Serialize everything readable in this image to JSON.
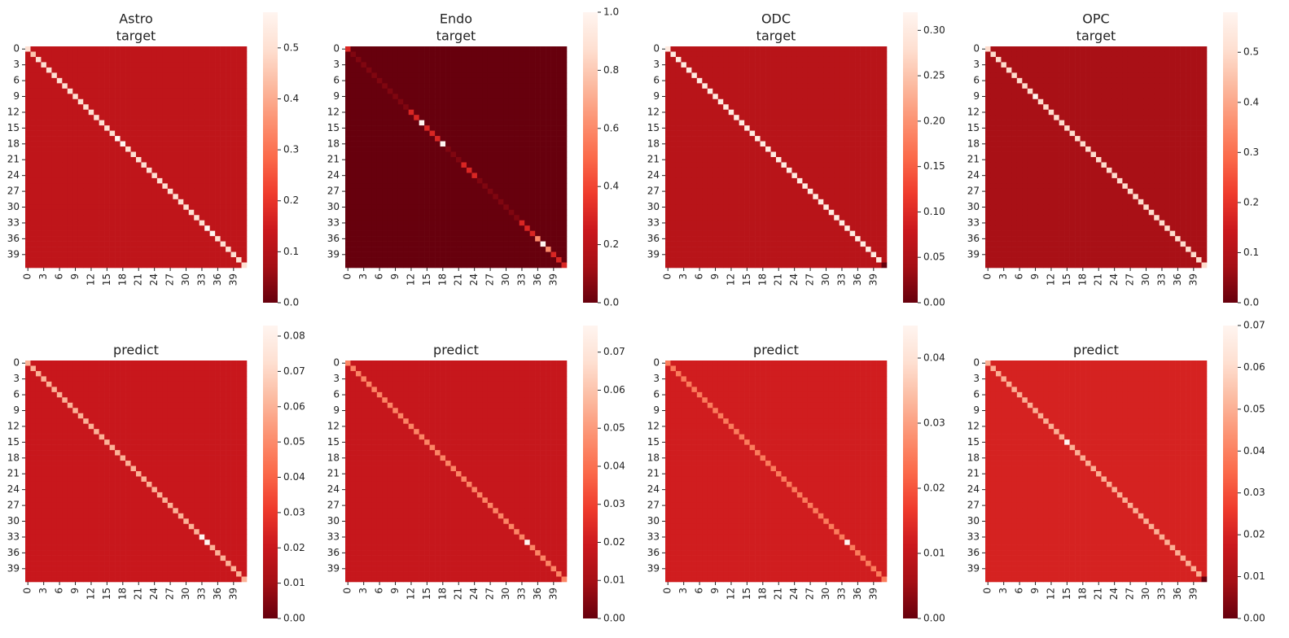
{
  "chart_data": [
    {
      "type": "heatmap",
      "title": [
        "Astro",
        "target"
      ],
      "colormap": "Reds_r",
      "categories": [
        0,
        null,
        null,
        3,
        null,
        null,
        6,
        null,
        null,
        9,
        null,
        null,
        12,
        null,
        null,
        15,
        null,
        null,
        18,
        null,
        null,
        21,
        null,
        null,
        24,
        null,
        null,
        27,
        null,
        null,
        30,
        null,
        null,
        33,
        null,
        null,
        36,
        null,
        null,
        39,
        null,
        null
      ],
      "diagonal": [
        0.5,
        0.45,
        0.5,
        0.5,
        0.5,
        0.5,
        0.5,
        0.5,
        0.5,
        0.5,
        0.5,
        0.5,
        0.5,
        0.5,
        0.5,
        0.5,
        0.5,
        0.57,
        0.57,
        0.5,
        0.5,
        0.5,
        0.5,
        0.5,
        0.5,
        0.5,
        0.5,
        0.5,
        0.5,
        0.5,
        0.5,
        0.5,
        0.5,
        0.5,
        0.57,
        0.57,
        0.5,
        0.5,
        0.5,
        0.5,
        0.5,
        0.5
      ],
      "off_diagonal": 0.12,
      "zlim": [
        0,
        0.57
      ],
      "zticks": [
        {
          "value": 0,
          "label": "0.0"
        },
        0.1,
        0.2,
        0.3,
        0.4,
        0.5
      ]
    },
    {
      "type": "heatmap",
      "title": [
        "Endo",
        "target"
      ],
      "colormap": "Reds_r",
      "categories": [
        0,
        null,
        null,
        3,
        null,
        null,
        6,
        null,
        null,
        9,
        null,
        null,
        12,
        null,
        null,
        15,
        null,
        null,
        18,
        null,
        null,
        21,
        null,
        null,
        24,
        null,
        null,
        27,
        null,
        null,
        30,
        null,
        null,
        33,
        null,
        null,
        36,
        null,
        null,
        39,
        null,
        null
      ],
      "diagonal": [
        0.3,
        0.05,
        0.05,
        0.05,
        0.05,
        0.05,
        0.05,
        0.05,
        0.05,
        0.05,
        0.05,
        0.05,
        0.3,
        0.3,
        1,
        0.3,
        0.3,
        0.3,
        1,
        0.05,
        0.05,
        0.05,
        0.3,
        0.3,
        0.3,
        0.05,
        0.05,
        0.05,
        0.05,
        0.05,
        0.05,
        0.05,
        0.05,
        0.3,
        0.3,
        0.3,
        0.6,
        1,
        0.6,
        0.3,
        0.3,
        0.3
      ],
      "off_diagonal": 0,
      "zlim": [
        0,
        1
      ],
      "zticks": [
        {
          "value": 0,
          "label": "0.0"
        },
        0.2,
        0.4,
        0.6,
        0.8,
        {
          "value": 1,
          "label": "1.0"
        }
      ]
    },
    {
      "type": "heatmap",
      "title": [
        "ODC",
        "target"
      ],
      "colormap": "Reds_r",
      "categories": [
        0,
        null,
        null,
        3,
        null,
        null,
        6,
        null,
        null,
        9,
        null,
        null,
        12,
        null,
        null,
        15,
        null,
        null,
        18,
        null,
        null,
        21,
        null,
        null,
        24,
        null,
        null,
        27,
        null,
        null,
        30,
        null,
        null,
        33,
        null,
        null,
        36,
        null,
        null,
        39,
        null,
        null
      ],
      "diagonal": [
        0.3,
        0.3,
        0.3,
        0.3,
        0.3,
        0.3,
        0.3,
        0.3,
        0.3,
        0.3,
        0.3,
        0.3,
        0.3,
        0.3,
        0.3,
        0.3,
        0.3,
        0.3,
        0.3,
        0.3,
        0.3,
        0.3,
        0.3,
        0.3,
        0.3,
        0.3,
        0.3,
        0.3,
        0.3,
        0.3,
        0.3,
        0.3,
        0.3,
        0.3,
        0.3,
        0.3,
        0.3,
        0.3,
        0.3,
        0.3,
        0.3,
        0
      ],
      "off_diagonal": 0.06,
      "zlim": [
        0,
        0.32
      ],
      "zticks": [
        {
          "value": 0,
          "label": "0.00"
        },
        0.05,
        {
          "value": 0.1,
          "label": "0.10"
        },
        0.15,
        {
          "value": 0.2,
          "label": "0.20"
        },
        0.25,
        {
          "value": 0.3,
          "label": "0.30"
        }
      ]
    },
    {
      "type": "heatmap",
      "title": [
        "OPC",
        "target"
      ],
      "colormap": "Reds_r",
      "categories": [
        0,
        null,
        null,
        3,
        null,
        null,
        6,
        null,
        null,
        9,
        null,
        null,
        12,
        null,
        null,
        15,
        null,
        null,
        18,
        null,
        null,
        21,
        null,
        null,
        24,
        null,
        null,
        27,
        null,
        null,
        30,
        null,
        null,
        33,
        null,
        null,
        36,
        null,
        null,
        39,
        null,
        null
      ],
      "diagonal": [
        0.5,
        0.5,
        0.5,
        0.5,
        0.5,
        0.5,
        0.5,
        0.5,
        0.5,
        0.58,
        0.5,
        0.5,
        0.5,
        0.5,
        0.5,
        0.5,
        0.5,
        0.5,
        0.5,
        0.5,
        0.5,
        0.5,
        0.5,
        0.5,
        0.5,
        0.5,
        0.5,
        0.5,
        0.5,
        0.5,
        0.5,
        0.5,
        0.5,
        0.5,
        0.5,
        0.5,
        0.5,
        0.5,
        0.5,
        0.5,
        0.5,
        0.5
      ],
      "off_diagonal": 0.08,
      "zlim": [
        0,
        0.58
      ],
      "zticks": [
        {
          "value": 0,
          "label": "0.0"
        },
        0.1,
        0.2,
        0.3,
        0.4,
        0.5
      ]
    },
    {
      "type": "heatmap",
      "title": [
        "predict"
      ],
      "colormap": "Reds_r",
      "categories": [
        0,
        null,
        null,
        3,
        null,
        null,
        6,
        null,
        null,
        9,
        null,
        null,
        12,
        null,
        null,
        15,
        null,
        null,
        18,
        null,
        null,
        21,
        null,
        null,
        24,
        null,
        null,
        27,
        null,
        null,
        30,
        null,
        null,
        33,
        null,
        null,
        36,
        null,
        null,
        39,
        null,
        null
      ],
      "diagonal": [
        0.06,
        0.06,
        0.06,
        0.06,
        0.06,
        0.06,
        0.06,
        0.06,
        0.06,
        0.06,
        0.06,
        0.06,
        0.06,
        0.06,
        0.06,
        0.06,
        0.06,
        0.06,
        0.06,
        0.06,
        0.06,
        0.06,
        0.06,
        0.06,
        0.06,
        0.06,
        0.06,
        0.06,
        0.06,
        0.06,
        0.06,
        0.06,
        0.06,
        0.083,
        0.083,
        0.06,
        0.06,
        0.06,
        0.06,
        0.06,
        0.06,
        0.06
      ],
      "off_diagonal": 0.02,
      "zlim": [
        0,
        0.083
      ],
      "zticks": [
        {
          "value": 0,
          "label": "0.00"
        },
        0.01,
        0.02,
        0.03,
        0.04,
        0.05,
        0.06,
        0.07,
        0.08
      ]
    },
    {
      "type": "heatmap",
      "title": [
        "predict"
      ],
      "colormap": "Reds_r",
      "categories": [
        0,
        null,
        null,
        3,
        null,
        null,
        6,
        null,
        null,
        9,
        null,
        null,
        12,
        null,
        null,
        15,
        null,
        null,
        18,
        null,
        null,
        21,
        null,
        null,
        24,
        null,
        null,
        27,
        null,
        null,
        30,
        null,
        null,
        33,
        null,
        null,
        36,
        null,
        null,
        39,
        null,
        null
      ],
      "diagonal": [
        0.045,
        0.045,
        0.045,
        0.045,
        0.045,
        0.045,
        0.045,
        0.045,
        0.045,
        0.045,
        0.045,
        0.045,
        0.045,
        0.045,
        0.045,
        0.045,
        0.045,
        0.045,
        0.045,
        0.045,
        0.045,
        0.045,
        0.045,
        0.045,
        0.045,
        0.045,
        0.045,
        0.045,
        0.045,
        0.045,
        0.045,
        0.045,
        0.045,
        0.045,
        0.077,
        0.045,
        0.045,
        0.045,
        0.045,
        0.045,
        0.045,
        0.045
      ],
      "off_diagonal": 0.018,
      "zlim": [
        0,
        0.077
      ],
      "zticks": [
        {
          "value": 0,
          "label": "0.00"
        },
        0.01,
        0.02,
        0.03,
        0.04,
        0.05,
        0.06,
        0.07
      ]
    },
    {
      "type": "heatmap",
      "title": [
        "predict"
      ],
      "colormap": "Reds_r",
      "categories": [
        0,
        null,
        null,
        3,
        null,
        null,
        6,
        null,
        null,
        9,
        null,
        null,
        12,
        null,
        null,
        15,
        null,
        null,
        18,
        null,
        null,
        21,
        null,
        null,
        24,
        null,
        null,
        27,
        null,
        null,
        30,
        null,
        null,
        33,
        null,
        null,
        36,
        null,
        null,
        39,
        null,
        null
      ],
      "diagonal": [
        0.025,
        0.025,
        0.025,
        0.025,
        0.025,
        0.025,
        0.025,
        0.025,
        0.025,
        0.025,
        0.025,
        0.025,
        0.025,
        0.025,
        0.025,
        0.025,
        0.025,
        0.025,
        0.025,
        0.025,
        0.025,
        0.025,
        0.025,
        0.025,
        0.025,
        0.025,
        0.025,
        0.025,
        0.025,
        0.025,
        0.025,
        0.025,
        0.025,
        0.025,
        0.045,
        0.025,
        0.025,
        0.025,
        0.025,
        0.025,
        0.025,
        0.025
      ],
      "off_diagonal": 0.012,
      "zlim": [
        0,
        0.045
      ],
      "zticks": [
        {
          "value": 0,
          "label": "0.00"
        },
        0.01,
        0.02,
        0.03,
        0.04
      ]
    },
    {
      "type": "heatmap",
      "title": [
        "predict"
      ],
      "colormap": "Reds_r",
      "categories": [
        0,
        null,
        null,
        3,
        null,
        null,
        6,
        null,
        null,
        9,
        null,
        null,
        12,
        null,
        null,
        15,
        null,
        null,
        18,
        null,
        null,
        21,
        null,
        null,
        24,
        null,
        null,
        27,
        null,
        null,
        30,
        null,
        null,
        33,
        null,
        null,
        36,
        null,
        null,
        39,
        null,
        null
      ],
      "diagonal": [
        0.05,
        0.05,
        0.05,
        0.05,
        0.05,
        0.05,
        0.05,
        0.05,
        0.05,
        0.05,
        0.05,
        0.05,
        0.05,
        0.05,
        0.05,
        0.07,
        0.05,
        0.05,
        0.05,
        0.05,
        0.05,
        0.05,
        0.05,
        0.05,
        0.05,
        0.05,
        0.05,
        0.05,
        0.05,
        0.05,
        0.05,
        0.05,
        0.05,
        0.05,
        0.05,
        0.05,
        0.05,
        0.05,
        0.05,
        0.05,
        0.05,
        0
      ],
      "off_diagonal": 0.02,
      "zlim": [
        0,
        0.07
      ],
      "zticks": [
        {
          "value": 0,
          "label": "0.00"
        },
        0.01,
        0.02,
        0.03,
        0.04,
        0.05,
        0.06,
        0.07
      ]
    }
  ]
}
